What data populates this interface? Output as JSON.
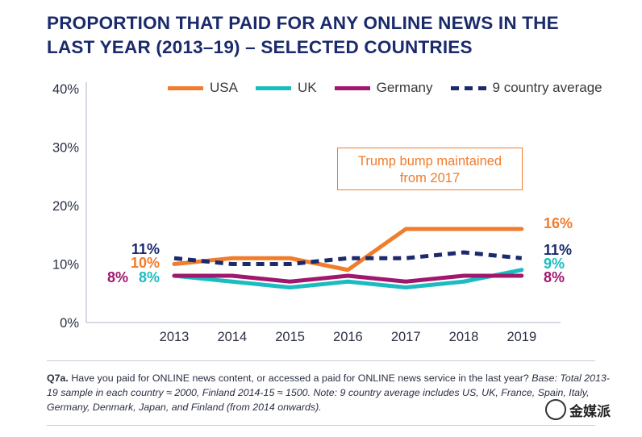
{
  "title_line1": "PROPORTION THAT PAID FOR ANY ONLINE NEWS IN THE",
  "title_line2": "LAST YEAR (2013–19) – SELECTED COUNTRIES",
  "annotation": {
    "line1": "Trump bump maintained",
    "line2": "from 2017"
  },
  "footnote": {
    "label": "Q7a.",
    "question": " Have you paid for ONLINE news content, or accessed a paid for ONLINE news service in the last year? ",
    "base": "Base: Total 2013-19 sample in each country ≈ 2000, Finland 2014-15 ≈ 1500. Note: 9 country average includes US, UK, France, Spain, Italy, Germany, Denmark, Japan, and Finland (from 2014 onwards)."
  },
  "watermark": "金媒派",
  "colors": {
    "USA": "#f07c2c",
    "UK": "#1bbcc0",
    "Germany": "#a0186e",
    "avg": "#1a2a6c"
  },
  "chart_data": {
    "type": "line",
    "x": [
      "2013",
      "2014",
      "2015",
      "2016",
      "2017",
      "2018",
      "2019"
    ],
    "ylim": [
      0,
      40
    ],
    "yticks": [
      "0%",
      "10%",
      "20%",
      "30%",
      "40%"
    ],
    "grid": false,
    "legend_position": "top",
    "series": [
      {
        "name": "USA",
        "key": "USA",
        "values": [
          10,
          11,
          11,
          9,
          16,
          16,
          16
        ],
        "start_label": "10%",
        "end_label": "16%",
        "dashed": false
      },
      {
        "name": "UK",
        "key": "UK",
        "values": [
          8,
          7,
          6,
          7,
          6,
          7,
          9
        ],
        "start_label": "8%",
        "end_label": "9%",
        "dashed": false
      },
      {
        "name": "Germany",
        "key": "Germany",
        "values": [
          8,
          8,
          7,
          8,
          7,
          8,
          8
        ],
        "start_label": "8%",
        "end_label": "8%",
        "dashed": false
      },
      {
        "name": "9 country average",
        "key": "avg",
        "values": [
          11,
          10,
          10,
          11,
          11,
          12,
          11
        ],
        "start_label": "11%",
        "end_label": "11%",
        "dashed": true
      }
    ]
  }
}
